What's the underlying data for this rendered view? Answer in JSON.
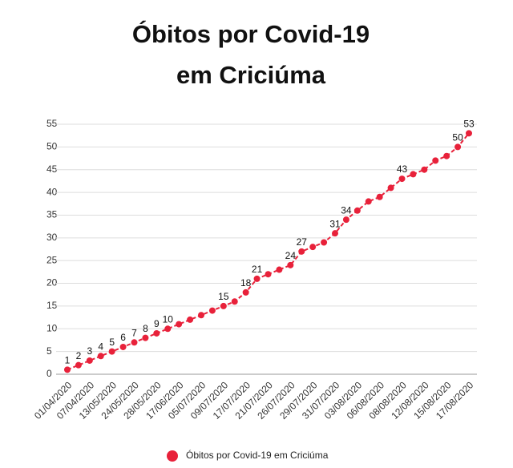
{
  "chart_data": {
    "type": "line",
    "title": [
      "Óbitos por Covid-19",
      "em Criciúma"
    ],
    "categories": [
      "01/04/2020",
      null,
      "07/04/2020",
      null,
      "13/05/2020",
      null,
      "24/05/2020",
      null,
      "28/05/2020",
      null,
      "17/06/2020",
      null,
      "05/07/2020",
      null,
      "09/07/2020",
      null,
      "17/07/2020",
      null,
      "21/07/2020",
      null,
      "26/07/2020",
      null,
      "29/07/2020",
      null,
      "31/07/2020",
      null,
      "03/08/2020",
      null,
      "06/08/2020",
      null,
      "08/08/2020",
      null,
      "12/08/2020",
      null,
      "15/08/2020",
      null,
      "17/08/2020"
    ],
    "series": [
      {
        "name": "Óbitos por Covid-19 em Criciúma",
        "color": "#e8213a",
        "values": [
          1,
          2,
          3,
          4,
          5,
          6,
          7,
          8,
          9,
          10,
          11,
          12,
          13,
          14,
          15,
          16,
          18,
          21,
          22,
          23,
          24,
          27,
          28,
          29,
          31,
          34,
          36,
          38,
          39,
          41,
          43,
          44,
          45,
          47,
          48,
          50,
          53
        ],
        "value_labels": [
          "1",
          "2",
          "3",
          "4",
          "5",
          "6",
          "7",
          "8",
          "9",
          "10",
          null,
          null,
          null,
          null,
          "15",
          null,
          "18",
          "21",
          null,
          null,
          "24",
          "27",
          null,
          null,
          "31",
          "34",
          null,
          null,
          null,
          null,
          "43",
          null,
          null,
          null,
          null,
          "50",
          "53"
        ]
      }
    ],
    "ylim": [
      0,
      55
    ],
    "yticks": [
      0,
      5,
      10,
      15,
      20,
      25,
      30,
      35,
      40,
      45,
      50,
      55
    ],
    "grid": true,
    "legend": "bottom"
  }
}
